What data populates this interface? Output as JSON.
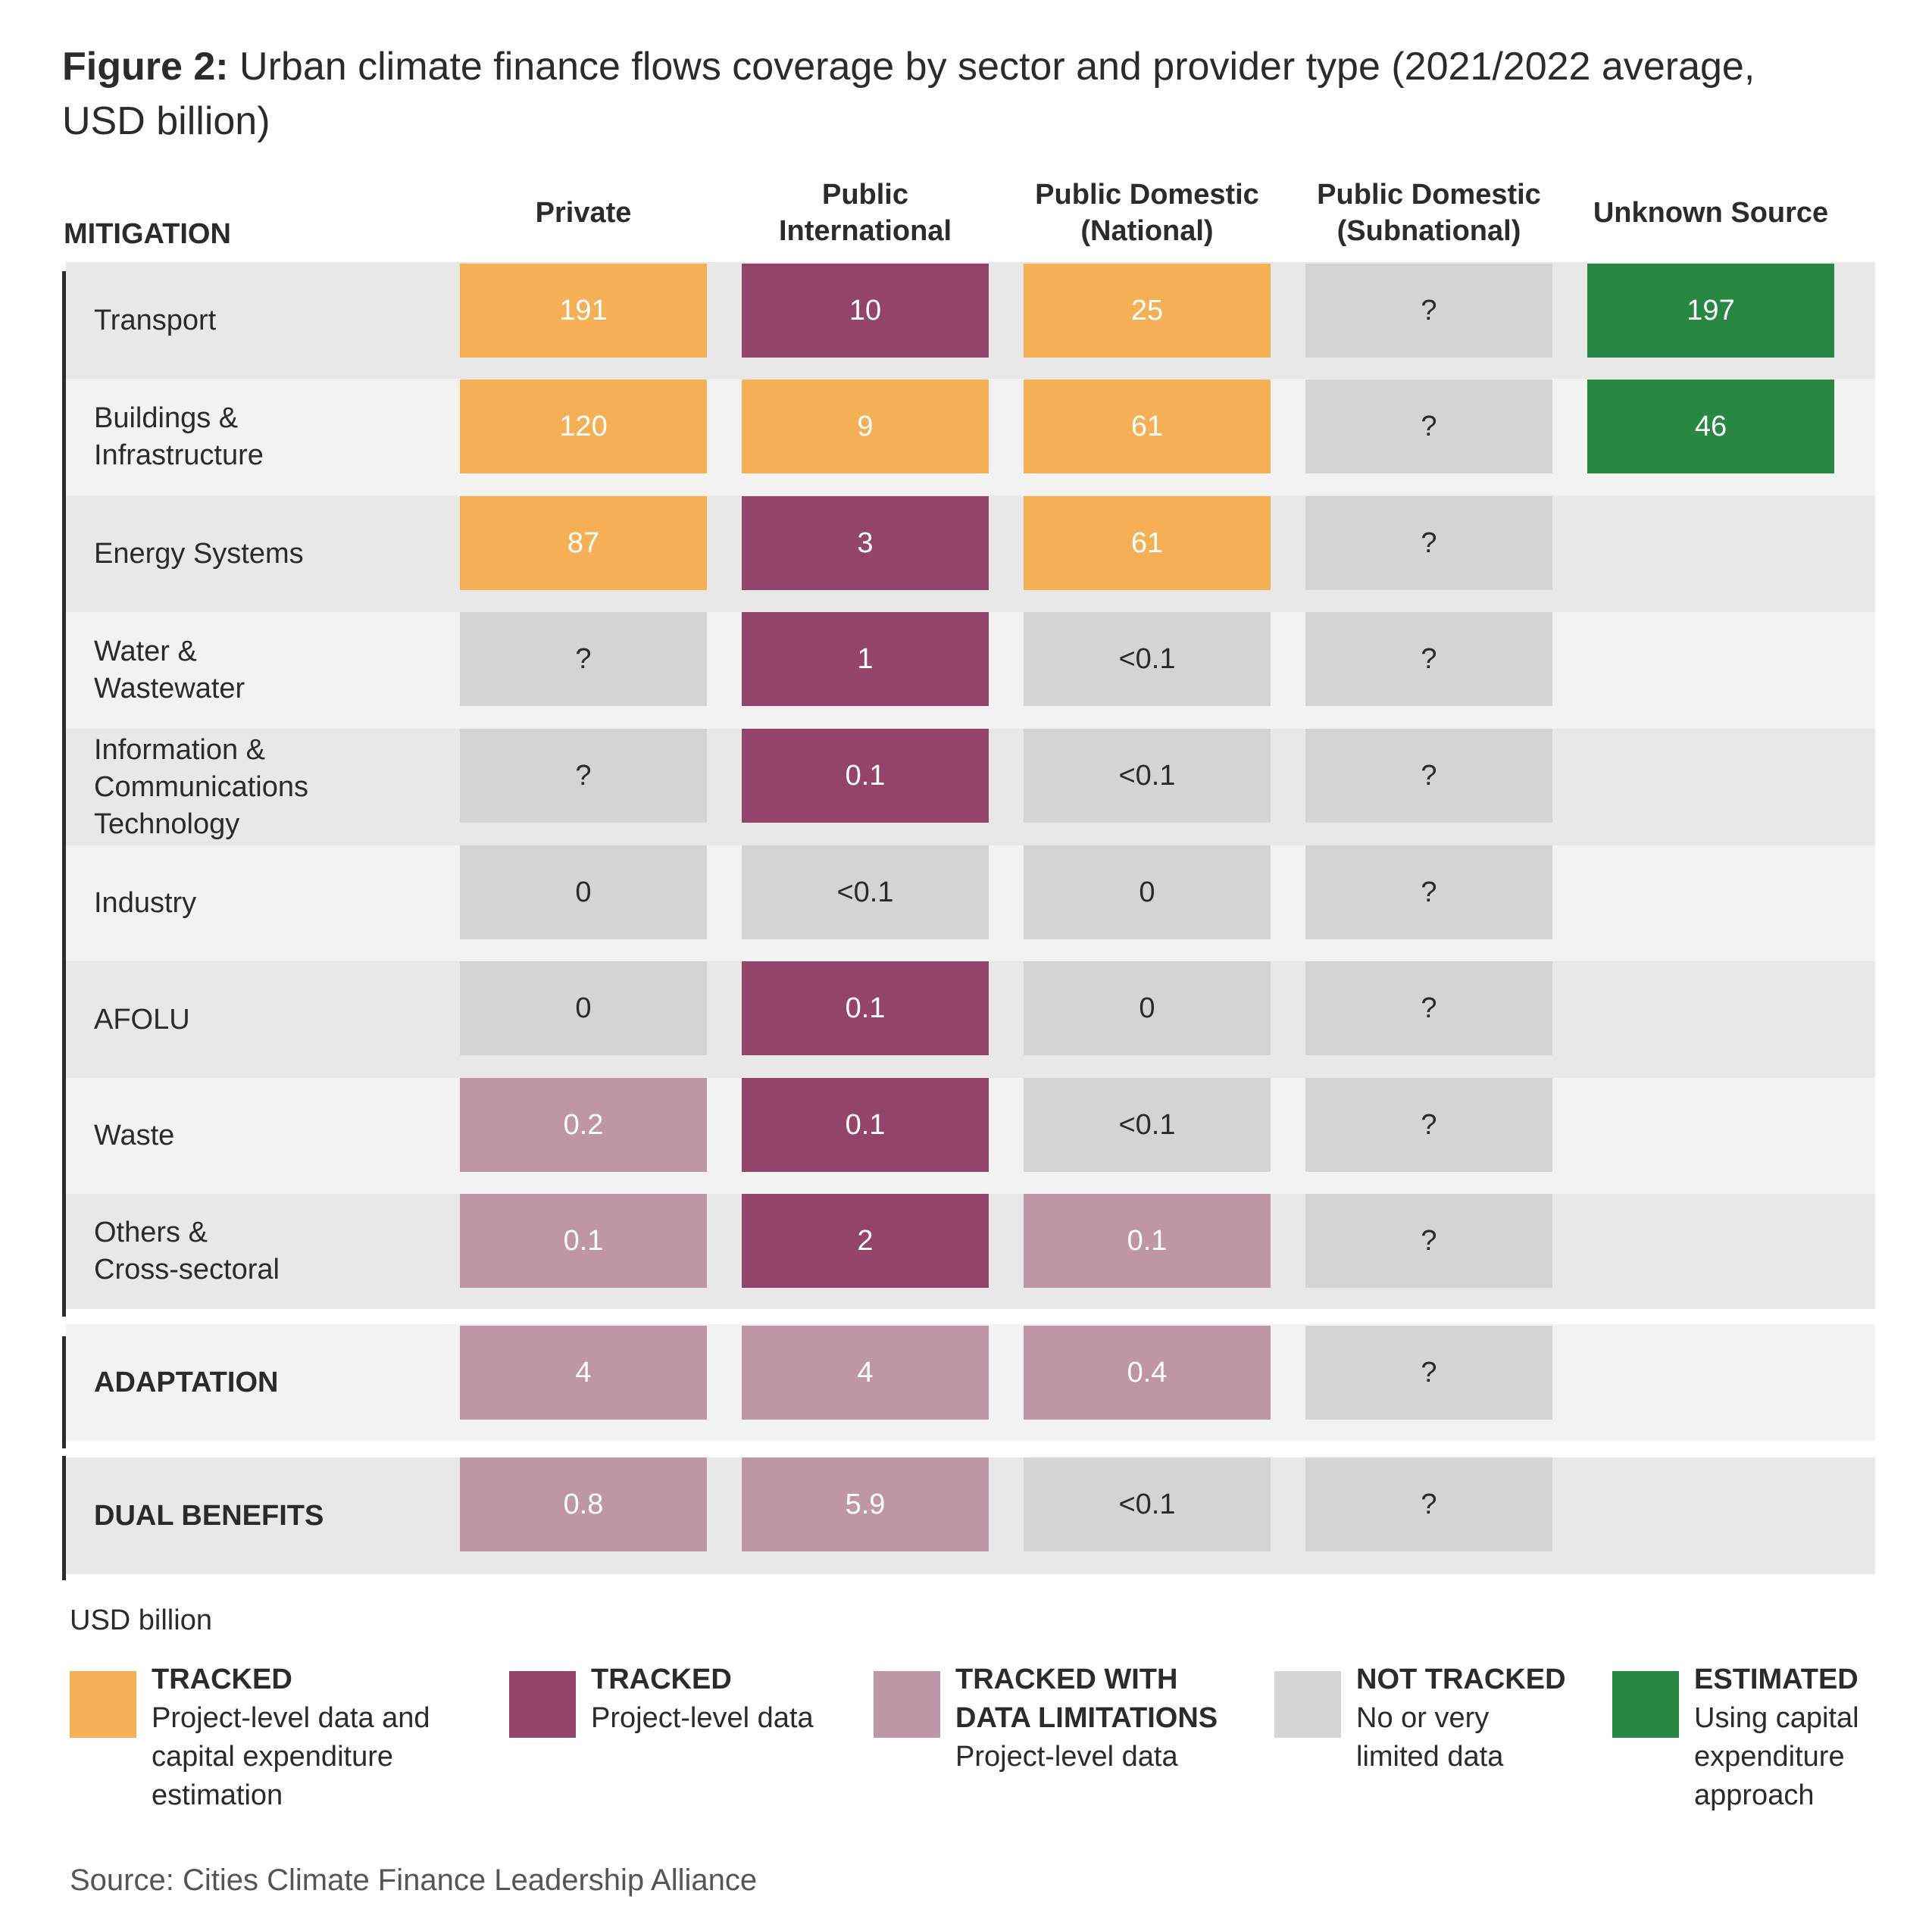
{
  "title_bold": "Figure 2:",
  "title_rest": "Urban climate finance flows coverage by sector and provider type (2021/2022 average, USD billion)",
  "colors": {
    "tracked_capex": "#f5b055",
    "tracked": "#94436b",
    "limited": "#bf96a8",
    "not_tracked": "#d5d3d4",
    "estimated": "#278743",
    "band_dark": "#e8e8e8",
    "band_light": "#f2f2f2"
  },
  "chart_data": {
    "type": "table",
    "section_mitigation": "MITIGATION",
    "columns": [
      "Private",
      "Public\nInternational",
      "Public Domestic\n(National)",
      "Public Domestic\n(Subnational)",
      "Unknown Source"
    ],
    "rows": [
      {
        "label": "Transport",
        "group": "mitigation",
        "bold": false,
        "values": [
          "191",
          "10",
          "25",
          "?",
          "197"
        ],
        "categories": [
          "tracked_capex",
          "tracked",
          "tracked_capex",
          "not_tracked",
          "estimated"
        ]
      },
      {
        "label": "Buildings &\nInfrastructure",
        "group": "mitigation",
        "bold": false,
        "values": [
          "120",
          "9",
          "61",
          "?",
          "46"
        ],
        "categories": [
          "tracked_capex",
          "tracked_capex",
          "tracked_capex",
          "not_tracked",
          "estimated"
        ]
      },
      {
        "label": "Energy Systems",
        "group": "mitigation",
        "bold": false,
        "values": [
          "87",
          "3",
          "61",
          "?",
          ""
        ],
        "categories": [
          "tracked_capex",
          "tracked",
          "tracked_capex",
          "not_tracked",
          ""
        ]
      },
      {
        "label": "Water &\nWastewater",
        "group": "mitigation",
        "bold": false,
        "values": [
          "?",
          "1",
          "<0.1",
          "?",
          ""
        ],
        "categories": [
          "not_tracked",
          "tracked",
          "not_tracked",
          "not_tracked",
          ""
        ]
      },
      {
        "label": "Information &\nCommunications\nTechnology",
        "group": "mitigation",
        "bold": false,
        "values": [
          "?",
          "0.1",
          "<0.1",
          "?",
          ""
        ],
        "categories": [
          "not_tracked",
          "tracked",
          "not_tracked",
          "not_tracked",
          ""
        ]
      },
      {
        "label": "Industry",
        "group": "mitigation",
        "bold": false,
        "values": [
          "0",
          "<0.1",
          "0",
          "?",
          ""
        ],
        "categories": [
          "not_tracked",
          "not_tracked",
          "not_tracked",
          "not_tracked",
          ""
        ]
      },
      {
        "label": "AFOLU",
        "group": "mitigation",
        "bold": false,
        "values": [
          "0",
          "0.1",
          "0",
          "?",
          ""
        ],
        "categories": [
          "not_tracked",
          "tracked",
          "not_tracked",
          "not_tracked",
          ""
        ]
      },
      {
        "label": "Waste",
        "group": "mitigation",
        "bold": false,
        "values": [
          "0.2",
          "0.1",
          "<0.1",
          "?",
          ""
        ],
        "categories": [
          "limited",
          "tracked",
          "not_tracked",
          "not_tracked",
          ""
        ]
      },
      {
        "label": "Others &\nCross-sectoral",
        "group": "mitigation",
        "bold": false,
        "values": [
          "0.1",
          "2",
          "0.1",
          "?",
          ""
        ],
        "categories": [
          "limited",
          "tracked",
          "limited",
          "not_tracked",
          ""
        ]
      },
      {
        "label": "ADAPTATION",
        "group": "adaptation",
        "bold": true,
        "values": [
          "4",
          "4",
          "0.4",
          "?",
          ""
        ],
        "categories": [
          "limited",
          "limited",
          "limited",
          "not_tracked",
          ""
        ]
      },
      {
        "label": "DUAL BENEFITS",
        "group": "dual",
        "bold": true,
        "values": [
          "0.8",
          "5.9",
          "<0.1",
          "?",
          ""
        ],
        "categories": [
          "limited",
          "limited",
          "not_tracked",
          "not_tracked",
          ""
        ]
      }
    ]
  },
  "units_label": "USD billion",
  "legend": [
    {
      "key": "tracked_capex",
      "title": "TRACKED",
      "desc": "Project-level data and\ncapital expenditure\nestimation"
    },
    {
      "key": "tracked",
      "title": "TRACKED",
      "desc": "Project-level data"
    },
    {
      "key": "limited",
      "title": "TRACKED WITH\nDATA LIMITATIONS",
      "desc": "Project-level data"
    },
    {
      "key": "not_tracked",
      "title": "NOT TRACKED",
      "desc": "No or very\nlimited data"
    },
    {
      "key": "estimated",
      "title": "ESTIMATED",
      "desc": "Using capital\nexpenditure\napproach"
    }
  ],
  "source": "Source: Cities Climate Finance Leadership Alliance"
}
